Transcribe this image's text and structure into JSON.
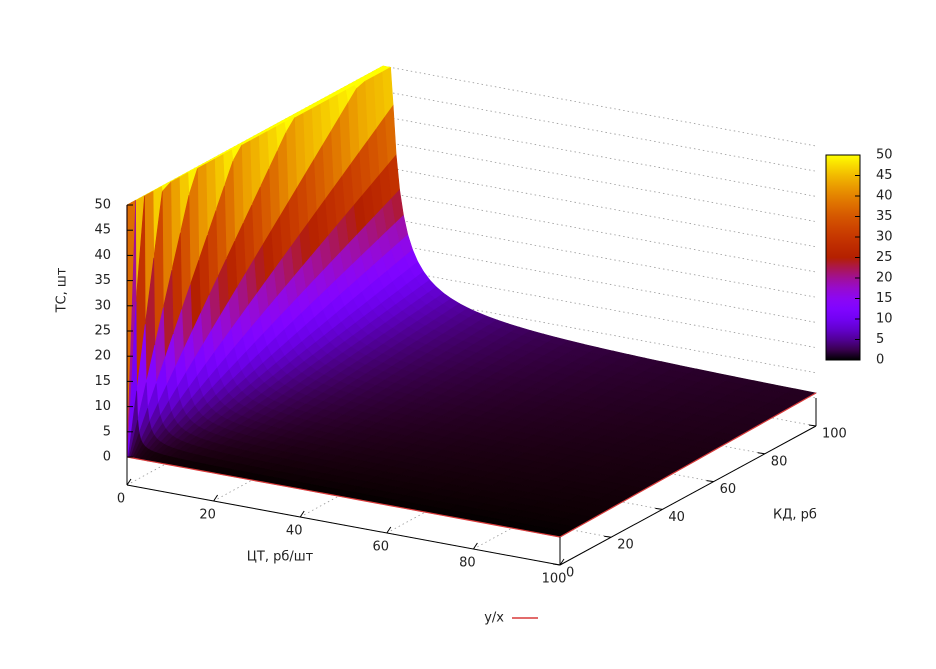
{
  "chart_data": {
    "type": "surface",
    "series": [
      {
        "name": "y/x",
        "color": "#d83a3a"
      }
    ],
    "xlabel": "ЦТ, рб/шт",
    "ylabel": "КД, рб",
    "zlabel": "ТС, шт",
    "xlim": [
      0,
      100
    ],
    "ylim": [
      0,
      100
    ],
    "zlim": [
      0,
      50
    ],
    "xticks": [
      0,
      20,
      40,
      60,
      80,
      100
    ],
    "yticks": [
      0,
      20,
      40,
      60,
      80,
      100
    ],
    "zticks": [
      0,
      5,
      10,
      15,
      20,
      25,
      30,
      35,
      40,
      45,
      50
    ],
    "cblim": [
      0,
      50
    ],
    "cbticks": [
      0,
      5,
      10,
      15,
      20,
      25,
      30,
      35,
      40,
      45,
      50
    ],
    "grid": true
  }
}
